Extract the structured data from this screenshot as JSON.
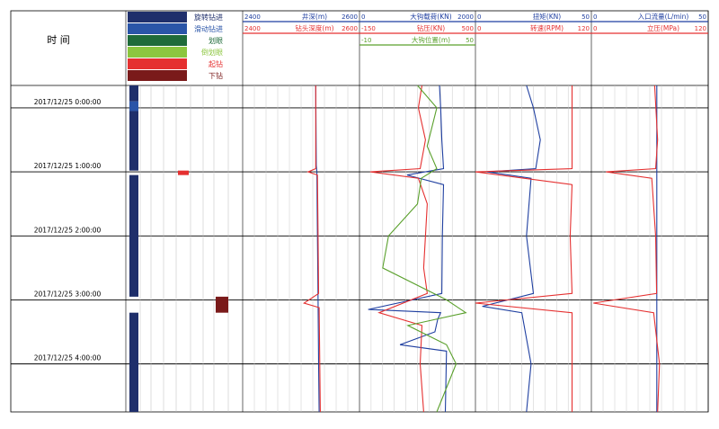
{
  "time_header": "时 间",
  "legend": [
    {
      "label": "旋转钻进",
      "color": "#1f2f6b"
    },
    {
      "label": "滑动钻进",
      "color": "#2a55a8"
    },
    {
      "label": "划眼",
      "color": "#1f6b3a"
    },
    {
      "label": "倒划眼",
      "color": "#8cc63f"
    },
    {
      "label": "起钻",
      "color": "#e53030"
    },
    {
      "label": "下钻",
      "color": "#7a1a1a"
    }
  ],
  "tracks": [
    {
      "headers": [
        {
          "min": "2400",
          "label": "井深(m)",
          "max": "2600",
          "color": "#1f3fa0"
        },
        {
          "min": "2400",
          "label": "钻头深度(m)",
          "max": "2600",
          "color": "#e53030"
        }
      ]
    },
    {
      "headers": [
        {
          "min": "0",
          "label": "大钩载荷(KN)",
          "max": "2000",
          "color": "#1f3fa0"
        },
        {
          "min": "-150",
          "label": "钻压(KN)",
          "max": "500",
          "color": "#e53030"
        },
        {
          "min": "-10",
          "label": "大钩位置(m)",
          "max": "50",
          "color": "#5aa02c"
        }
      ]
    },
    {
      "headers": [
        {
          "min": "0",
          "label": "扭矩(KN)",
          "max": "50",
          "color": "#1f3fa0"
        },
        {
          "min": "0",
          "label": "转速(RPM)",
          "max": "120",
          "color": "#e53030"
        }
      ]
    },
    {
      "headers": [
        {
          "min": "0",
          "label": "入口流量(L/min)",
          "max": "50",
          "color": "#1f3fa0"
        },
        {
          "min": "0",
          "label": "立压(MPa)",
          "max": "120",
          "color": "#e53030"
        }
      ]
    }
  ],
  "chart_data": {
    "type": "line",
    "title": "",
    "time_labels": [
      "2017/12/25 0:00:00",
      "2017/12/25 1:00:00",
      "2017/12/25 2:00:00",
      "2017/12/25 3:00:00",
      "2017/12/25 4:00:00"
    ],
    "time_range_hours": [
      -0.35,
      4.75
    ],
    "series": [
      {
        "name": "井深",
        "track": 0,
        "unit": "m",
        "range": [
          2400,
          2600
        ],
        "color": "#1f3fa0",
        "points": [
          [
            -0.35,
            2525
          ],
          [
            0.9,
            2526
          ],
          [
            1.0,
            2527
          ],
          [
            2.0,
            2528
          ],
          [
            3.0,
            2529
          ],
          [
            4.0,
            2530
          ],
          [
            4.75,
            2531
          ]
        ]
      },
      {
        "name": "钻头深度",
        "track": 0,
        "unit": "m",
        "range": [
          2400,
          2600
        ],
        "color": "#e53030",
        "points": [
          [
            -0.35,
            2525
          ],
          [
            0.95,
            2525
          ],
          [
            1.0,
            2512
          ],
          [
            1.05,
            2528
          ],
          [
            2.0,
            2529
          ],
          [
            2.9,
            2530
          ],
          [
            3.05,
            2505
          ],
          [
            3.12,
            2531
          ],
          [
            4.75,
            2533
          ]
        ]
      },
      {
        "name": "大钩载荷",
        "track": 1,
        "unit": "KN",
        "range": [
          0,
          2000
        ],
        "color": "#1f3fa0",
        "points": [
          [
            -0.35,
            1380
          ],
          [
            0.0,
            1400
          ],
          [
            0.5,
            1420
          ],
          [
            0.95,
            1450
          ],
          [
            1.05,
            820
          ],
          [
            1.2,
            1450
          ],
          [
            2.0,
            1430
          ],
          [
            2.9,
            1420
          ],
          [
            3.15,
            150
          ],
          [
            3.2,
            1400
          ],
          [
            3.3,
            1350
          ],
          [
            3.5,
            1300
          ],
          [
            3.7,
            700
          ],
          [
            3.8,
            1500
          ],
          [
            4.75,
            1480
          ]
        ]
      },
      {
        "name": "钻压",
        "track": 1,
        "unit": "KN",
        "range": [
          -150,
          500
        ],
        "color": "#e53030",
        "points": [
          [
            -0.35,
            200
          ],
          [
            0.0,
            180
          ],
          [
            0.5,
            220
          ],
          [
            0.95,
            190
          ],
          [
            1.0,
            -90
          ],
          [
            1.1,
            180
          ],
          [
            1.5,
            230
          ],
          [
            2.0,
            220
          ],
          [
            2.5,
            210
          ],
          [
            2.9,
            230
          ],
          [
            3.2,
            -40
          ],
          [
            3.4,
            200
          ],
          [
            4.0,
            190
          ],
          [
            4.75,
            210
          ]
        ]
      },
      {
        "name": "大钩位置",
        "track": 1,
        "unit": "m",
        "range": [
          -10,
          50
        ],
        "color": "#5aa02c",
        "points": [
          [
            -0.35,
            20
          ],
          [
            0.0,
            30
          ],
          [
            0.6,
            25
          ],
          [
            0.95,
            30
          ],
          [
            1.1,
            22
          ],
          [
            1.5,
            20
          ],
          [
            2.0,
            5
          ],
          [
            2.5,
            2
          ],
          [
            3.0,
            35
          ],
          [
            3.2,
            45
          ],
          [
            3.4,
            15
          ],
          [
            3.7,
            35
          ],
          [
            4.0,
            40
          ],
          [
            4.75,
            30
          ]
        ]
      },
      {
        "name": "扭矩",
        "track": 2,
        "unit": "KN",
        "range": [
          0,
          50
        ],
        "color": "#1f3fa0",
        "points": [
          [
            -0.35,
            22
          ],
          [
            0.0,
            25
          ],
          [
            0.5,
            28
          ],
          [
            0.95,
            26
          ],
          [
            1.0,
            5
          ],
          [
            1.1,
            24
          ],
          [
            2.0,
            22
          ],
          [
            2.9,
            25
          ],
          [
            3.1,
            3
          ],
          [
            3.2,
            20
          ],
          [
            4.0,
            24
          ],
          [
            4.75,
            22
          ]
        ]
      },
      {
        "name": "转速",
        "track": 2,
        "unit": "RPM",
        "range": [
          0,
          120
        ],
        "color": "#e53030",
        "points": [
          [
            -0.35,
            100
          ],
          [
            0.0,
            100
          ],
          [
            0.95,
            100
          ],
          [
            1.0,
            0
          ],
          [
            1.2,
            100
          ],
          [
            2.0,
            98
          ],
          [
            2.9,
            100
          ],
          [
            3.05,
            0
          ],
          [
            3.2,
            100
          ],
          [
            4.75,
            100
          ]
        ]
      },
      {
        "name": "入口流量",
        "track": 3,
        "unit": "L/min",
        "range": [
          0,
          50
        ],
        "color": "#1f3fa0",
        "points": [
          [
            -0.35,
            28
          ],
          [
            4.75,
            28
          ]
        ]
      },
      {
        "name": "立压",
        "track": 3,
        "unit": "MPa",
        "range": [
          0,
          120
        ],
        "color": "#e53030",
        "points": [
          [
            -0.35,
            65
          ],
          [
            0.5,
            68
          ],
          [
            0.95,
            66
          ],
          [
            1.0,
            15
          ],
          [
            1.1,
            62
          ],
          [
            2.0,
            66
          ],
          [
            2.9,
            67
          ],
          [
            3.05,
            2
          ],
          [
            3.2,
            64
          ],
          [
            4.0,
            70
          ],
          [
            4.75,
            68
          ]
        ]
      }
    ],
    "activity_intervals": [
      {
        "activity": "旋转钻进",
        "start": -0.35,
        "end": -0.1
      },
      {
        "activity": "滑动钻进",
        "start": -0.1,
        "end": 0.05
      },
      {
        "activity": "旋转钻进",
        "start": 0.05,
        "end": 0.98
      },
      {
        "activity": "起钻",
        "start": 0.98,
        "end": 1.05
      },
      {
        "activity": "旋转钻进",
        "start": 1.05,
        "end": 2.95
      },
      {
        "activity": "下钻",
        "start": 2.95,
        "end": 3.2
      },
      {
        "activity": "旋转钻进",
        "start": 3.2,
        "end": 4.75
      }
    ]
  }
}
